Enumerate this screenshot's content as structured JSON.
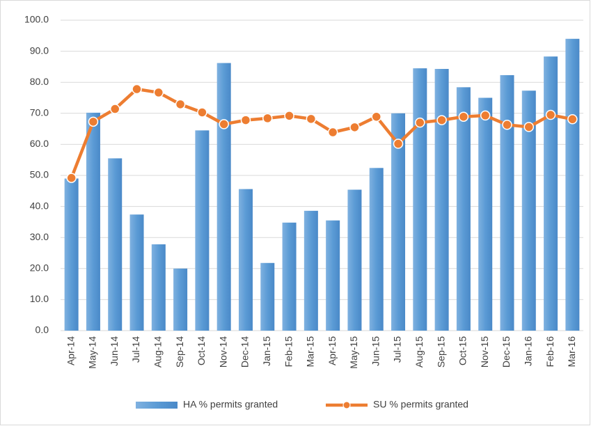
{
  "chart_data": {
    "type": "bar",
    "categories": [
      "Apr-14",
      "May-14",
      "Jun-14",
      "Jul-14",
      "Aug-14",
      "Sep-14",
      "Oct-14",
      "Nov-14",
      "Dec-14",
      "Jan-15",
      "Feb-15",
      "Mar-15",
      "Apr-15",
      "May-15",
      "Jun-15",
      "Jul-15",
      "Aug-15",
      "Sep-15",
      "Oct-15",
      "Nov-15",
      "Dec-15",
      "Jan-16",
      "Feb-16",
      "Mar-16"
    ],
    "series": [
      {
        "name": "HA % permits granted",
        "type": "bar",
        "color": "#5b9bd5",
        "values": [
          49,
          70.2,
          55.5,
          37.4,
          27.8,
          20.0,
          64.5,
          86.2,
          45.6,
          21.8,
          34.8,
          38.6,
          35.5,
          45.4,
          52.4,
          70.0,
          84.5,
          84.3,
          78.4,
          75.0,
          82.3,
          77.3,
          88.3,
          94.0
        ]
      },
      {
        "name": "SU % permits granted",
        "type": "line",
        "color": "#ed7d31",
        "values": [
          49.2,
          67.3,
          71.4,
          77.8,
          76.7,
          72.9,
          70.3,
          66.5,
          67.8,
          68.4,
          69.2,
          68.2,
          63.9,
          65.5,
          68.9,
          60.2,
          67.0,
          67.8,
          68.9,
          69.3,
          66.3,
          65.6,
          69.5,
          68.1
        ]
      }
    ],
    "ylim": [
      0,
      100
    ],
    "yticks": [
      {
        "value": 0,
        "label": "0.0"
      },
      {
        "value": 10,
        "label": "10.0"
      },
      {
        "value": 20,
        "label": "20.0"
      },
      {
        "value": 30,
        "label": "30.0"
      },
      {
        "value": 40,
        "label": "40.0"
      },
      {
        "value": 50,
        "label": "50.0"
      },
      {
        "value": 60,
        "label": "60.0"
      },
      {
        "value": 70,
        "label": "70.0"
      },
      {
        "value": 80,
        "label": "80.0"
      },
      {
        "value": 90,
        "label": "90.0"
      },
      {
        "value": 100,
        "label": "100.0"
      }
    ],
    "grid": true,
    "legend": "bottom"
  }
}
